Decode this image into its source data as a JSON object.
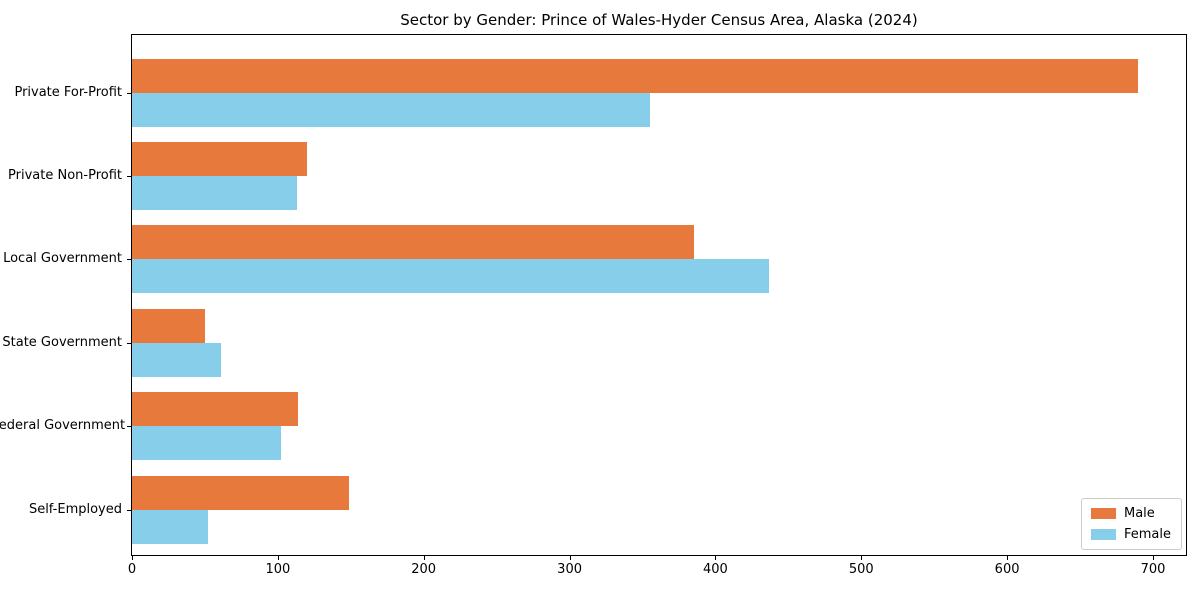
{
  "figure": {
    "background_color": "#ffffff",
    "frame_color": "#000000"
  },
  "chart_data": {
    "type": "bar",
    "orientation": "horizontal",
    "title": "Sector by Gender: Prince of Wales-Hyder Census Area, Alaska (2024)",
    "xlabel": "",
    "ylabel": "",
    "categories": [
      "Private For-Profit",
      "Private Non-Profit",
      "Local Government",
      "State Government",
      "Federal Government",
      "Self-Employed"
    ],
    "series": [
      {
        "name": "Male",
        "color": "#E8793C",
        "values": [
          690,
          120,
          385,
          50,
          114,
          149
        ]
      },
      {
        "name": "Female",
        "color": "#87CEEB",
        "values": [
          355,
          113,
          437,
          61,
          102,
          52
        ]
      }
    ],
    "xlim": [
      0,
      724
    ],
    "x_ticks": [
      0,
      100,
      200,
      300,
      400,
      500,
      600,
      700
    ],
    "grid": false,
    "legend": {
      "position": "lower right",
      "entries": [
        "Male",
        "Female"
      ]
    }
  }
}
